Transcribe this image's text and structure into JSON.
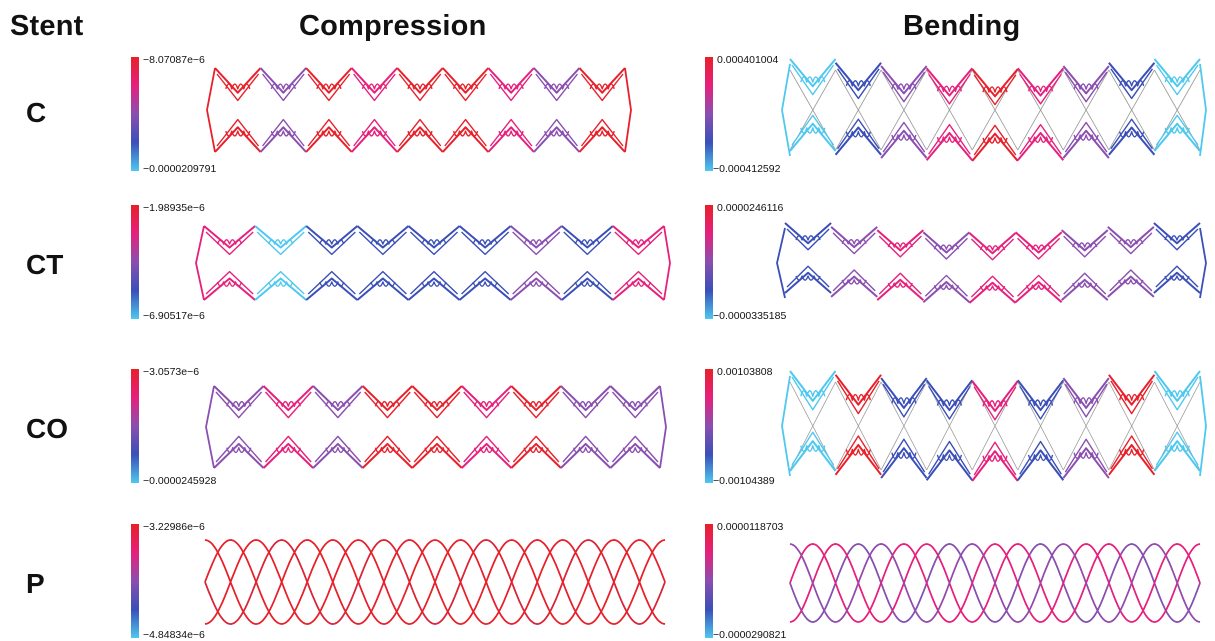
{
  "headers": {
    "stent": "Stent",
    "compression": "Compression",
    "bending": "Bending"
  },
  "palette": {
    "high": "#e8202a",
    "mid_high": "#e6207c",
    "mid": "#8a4fb0",
    "mid_low": "#3a4fb8",
    "low": "#4ec8ef",
    "undeformed": "#9a9a9a"
  },
  "rows": [
    {
      "label": "C",
      "compression": {
        "max": "−8.07087e−6",
        "min": "−0.0000209791"
      },
      "bending": {
        "max": "0.000401004",
        "min": "−0.000412592"
      }
    },
    {
      "label": "CT",
      "compression": {
        "max": "−1.98935e−6",
        "min": "−6.90517e−6"
      },
      "bending": {
        "max": "0.0000246116",
        "min": "−0.0000335185"
      }
    },
    {
      "label": "CO",
      "compression": {
        "max": "−3.0573e−6",
        "min": "−0.0000245928"
      },
      "bending": {
        "max": "0.00103808",
        "min": "−0.00104389"
      }
    },
    {
      "label": "P",
      "compression": {
        "max": "−3.22986e−6",
        "min": "−4.84834e−6"
      },
      "bending": {
        "max": "0.0000118703",
        "min": "−0.0000290821"
      }
    }
  ]
}
